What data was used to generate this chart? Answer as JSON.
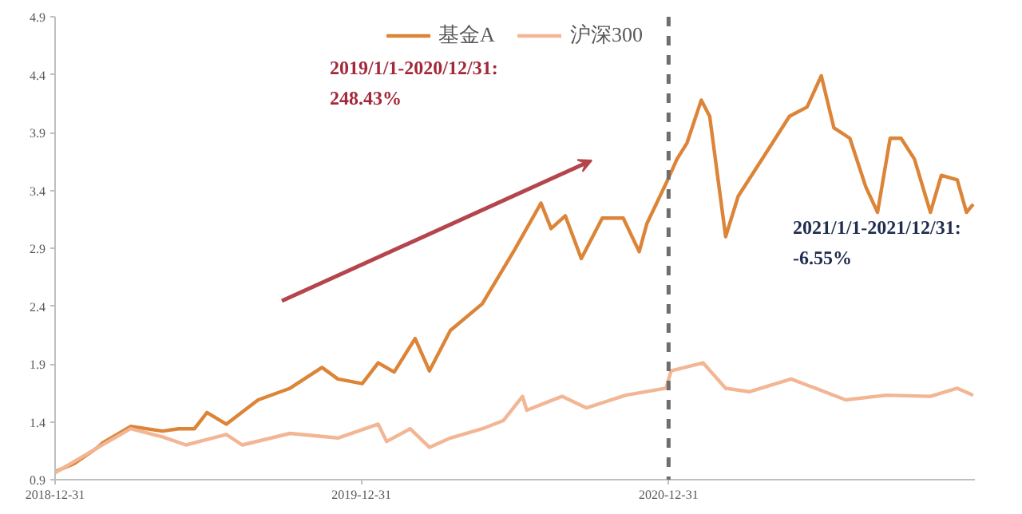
{
  "chart_data": {
    "type": "line",
    "legend": "top",
    "grid": false,
    "marker": "none",
    "line_style": "solid",
    "xlim": [
      "2018-12-31",
      "2021-12-31"
    ],
    "xticks": [
      "2018-12-31",
      "2019-12-31",
      "2020-12-31"
    ],
    "ylim": [
      0.9,
      4.9
    ],
    "yticks": [
      0.9,
      1.4,
      1.9,
      2.4,
      2.9,
      3.4,
      3.9,
      4.4,
      4.9
    ],
    "ref_lines": [
      {
        "axis": "x",
        "value": "2020-12-31",
        "label": null,
        "color": "#6e6e6e",
        "line_style": "dashed"
      }
    ],
    "annotations": [
      "2019/1/1-2020/12/31:\n248.43%",
      "2021/1/1-2021/12/31:\n-6.55%"
    ],
    "series": [
      {
        "name": "基金A",
        "color": "#dc8437",
        "x": [
          "2018-12-31",
          "2019-01-23",
          "2019-02-20",
          "2019-02-26",
          "2019-03-31",
          "2019-05-08",
          "2019-05-27",
          "2019-06-15",
          "2019-06-30",
          "2019-07-23",
          "2019-08-30",
          "2019-10-07",
          "2019-11-14",
          "2019-12-03",
          "2020-01-01",
          "2020-01-20",
          "2020-02-08",
          "2020-03-04",
          "2020-03-21",
          "2020-04-15",
          "2020-05-23",
          "2020-06-30",
          "2020-08-01",
          "2020-08-13",
          "2020-08-30",
          "2020-09-18",
          "2020-10-13",
          "2020-11-07",
          "2020-11-26",
          "2020-12-05",
          "2020-12-28",
          "2021-01-10",
          "2021-01-22",
          "2021-02-08",
          "2021-02-18",
          "2021-03-09",
          "2021-03-24",
          "2021-04-25",
          "2021-05-24",
          "2021-06-14",
          "2021-07-01",
          "2021-07-16",
          "2021-08-04",
          "2021-08-23",
          "2021-09-06",
          "2021-09-21",
          "2021-10-04",
          "2021-10-20",
          "2021-11-08",
          "2021-11-21",
          "2021-12-10",
          "2021-12-21",
          "2021-12-29"
        ],
        "values": [
          0.97,
          1.04,
          1.18,
          1.22,
          1.36,
          1.32,
          1.34,
          1.34,
          1.48,
          1.38,
          1.59,
          1.69,
          1.87,
          1.77,
          1.73,
          1.91,
          1.83,
          2.12,
          1.84,
          2.19,
          2.42,
          2.88,
          3.29,
          3.07,
          3.18,
          2.81,
          3.16,
          3.16,
          2.87,
          3.11,
          3.46,
          3.67,
          3.81,
          4.18,
          4.04,
          3.0,
          3.35,
          3.71,
          4.04,
          4.12,
          4.39,
          3.94,
          3.85,
          3.43,
          3.21,
          3.85,
          3.85,
          3.67,
          3.21,
          3.53,
          3.49,
          3.21,
          3.28
        ]
      },
      {
        "name": "沪深300",
        "color": "#f2b694",
        "x": [
          "2018-12-31",
          "2019-03-02",
          "2019-03-31",
          "2019-05-08",
          "2019-06-05",
          "2019-07-23",
          "2019-08-11",
          "2019-10-07",
          "2019-12-03",
          "2020-01-20",
          "2020-01-30",
          "2020-02-27",
          "2020-03-21",
          "2020-04-15",
          "2020-05-23",
          "2020-06-17",
          "2020-07-10",
          "2020-07-15",
          "2020-08-26",
          "2020-09-24",
          "2020-11-10",
          "2020-12-28",
          "2021-01-03",
          "2021-02-10",
          "2021-03-09",
          "2021-04-06",
          "2021-05-26",
          "2021-07-30",
          "2021-09-17",
          "2021-11-08",
          "2021-12-10",
          "2021-12-29"
        ],
        "values": [
          0.96,
          1.22,
          1.34,
          1.27,
          1.2,
          1.29,
          1.2,
          1.3,
          1.26,
          1.38,
          1.23,
          1.34,
          1.18,
          1.26,
          1.34,
          1.41,
          1.62,
          1.5,
          1.62,
          1.52,
          1.63,
          1.69,
          1.84,
          1.91,
          1.69,
          1.66,
          1.77,
          1.59,
          1.63,
          1.62,
          1.69,
          1.63
        ]
      }
    ]
  }
}
